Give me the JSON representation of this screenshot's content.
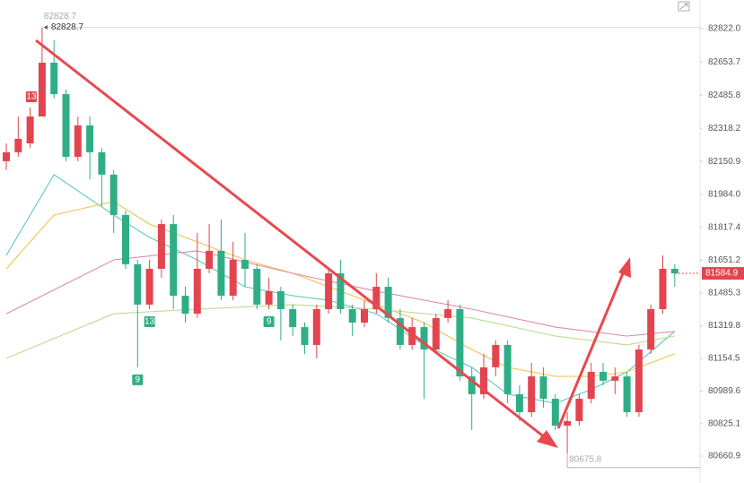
{
  "chart_data": {
    "type": "candlestick",
    "open": [
      82152,
      82197,
      82242,
      82378,
      82650,
      82491,
      82174,
      82333,
      82197,
      82084,
      81880,
      81631,
      81427,
      81608,
      81834,
      81472,
      81381,
      81608,
      81699,
      81472,
      81653,
      81608,
      81427,
      81495,
      81404,
      81313,
      81223,
      81404,
      81585,
      81404,
      81336,
      81404,
      81517,
      81359,
      81223,
      81313,
      81200,
      81359,
      81404,
      81064,
      80974,
      81110,
      81223,
      80974,
      80883,
      81064,
      80951,
      80815,
      80838,
      80951,
      81087,
      81042,
      81064,
      80883,
      81200,
      81404,
      81608
    ],
    "high": [
      82242,
      82378,
      82423,
      82828.7,
      82763,
      82514,
      82378,
      82378,
      82220,
      82106,
      81902,
      81653,
      81653,
      81857,
      81880,
      81517,
      81789,
      81834,
      81857,
      81744,
      81789,
      81631,
      81563,
      81517,
      81427,
      81336,
      81427,
      81608,
      81653,
      81427,
      81449,
      81585,
      81563,
      81404,
      81359,
      81336,
      81381,
      81449,
      81427,
      81110,
      81178,
      81246,
      81246,
      81019,
      81132,
      81110,
      80974,
      80883,
      80974,
      81132,
      81132,
      81110,
      81087,
      81223,
      81427,
      81676,
      81631
    ],
    "low": [
      82106,
      82174,
      82220,
      82378,
      82469,
      82152,
      82152,
      82061,
      81925,
      81789,
      81608,
      81110,
      81404,
      81563,
      81404,
      81336,
      81359,
      81585,
      81449,
      81449,
      81517,
      81404,
      81404,
      81246,
      81268,
      81178,
      81155,
      81381,
      81381,
      81268,
      81313,
      81381,
      81336,
      81200,
      81200,
      80951,
      81178,
      81336,
      81042,
      80793,
      80951,
      81064,
      80928,
      80838,
      80860,
      80906,
      80793,
      80675.8,
      80815,
      80928,
      81019,
      80974,
      80860,
      80860,
      81178,
      81381,
      81517
    ],
    "close": [
      82197,
      82265,
      82378,
      82650,
      82491,
      82174,
      82333,
      82197,
      82084,
      81880,
      81631,
      81427,
      81608,
      81834,
      81472,
      81381,
      81608,
      81699,
      81472,
      81653,
      81608,
      81427,
      81495,
      81404,
      81313,
      81223,
      81404,
      81585,
      81404,
      81336,
      81404,
      81517,
      81359,
      81223,
      81313,
      81200,
      81359,
      81404,
      81064,
      80974,
      81110,
      81223,
      80974,
      80883,
      81064,
      80951,
      80815,
      80838,
      80951,
      81087,
      81042,
      81064,
      80883,
      81200,
      81404,
      81608,
      81584.9
    ],
    "up_color": "#e2454f",
    "down_color": "#2fae86",
    "ylim": [
      80525,
      82967
    ],
    "yticks": [
      {
        "value": 82822,
        "label": "82822.0"
      },
      82653.7,
      82485.8,
      82318.2,
      82150.9,
      {
        "value": 81984,
        "label": "81984.0"
      },
      81817.4,
      81651.2,
      81485.3,
      81319.8,
      81154.5,
      80989.6,
      80825.1,
      80660.9
    ],
    "grid": false,
    "moving_averages": [
      {
        "color": "#5cc9c0",
        "x": [
          0,
          4,
          9,
          12,
          16,
          20,
          24,
          27,
          31,
          35,
          39,
          42,
          46,
          49,
          52,
          56
        ],
        "values": [
          81676,
          82084,
          81880,
          81767,
          81653,
          81517,
          81472,
          81449,
          81381,
          81223,
          81110,
          80974,
          80928,
          80997,
          81087,
          81291
        ]
      },
      {
        "color": "#f2c14e",
        "x": [
          0,
          4,
          9,
          12,
          16,
          20,
          24,
          27,
          31,
          35,
          39,
          42,
          46,
          49,
          52,
          56
        ],
        "values": [
          81608,
          81880,
          81948,
          81834,
          81744,
          81653,
          81585,
          81517,
          81427,
          81336,
          81200,
          81110,
          81064,
          81064,
          81087,
          81178
        ]
      },
      {
        "color": "#e58aa8",
        "x": [
          0,
          9,
          16,
          24,
          31,
          39,
          46,
          52,
          56
        ],
        "values": [
          81381,
          81653,
          81699,
          81585,
          81495,
          81404,
          81313,
          81268,
          81291
        ]
      },
      {
        "color": "#b9de8c",
        "x": [
          0,
          9,
          16,
          24,
          31,
          39,
          46,
          52,
          56
        ],
        "values": [
          81155,
          81381,
          81404,
          81427,
          81404,
          81359,
          81268,
          81223,
          81268
        ]
      }
    ],
    "annotations": {
      "high_label_top": "82828.7",
      "high_label": "82828.7",
      "low_label": "80675.8",
      "last_label": "81584.9"
    },
    "markers": [
      {
        "index": 3,
        "text": "13",
        "color": "#e2454f"
      },
      {
        "index": 11,
        "text": "9",
        "color": "#2fae86"
      },
      {
        "index": 12,
        "text": "13",
        "color": "#2fae86"
      },
      {
        "index": 22,
        "text": "9",
        "color": "#2fae86"
      }
    ]
  }
}
